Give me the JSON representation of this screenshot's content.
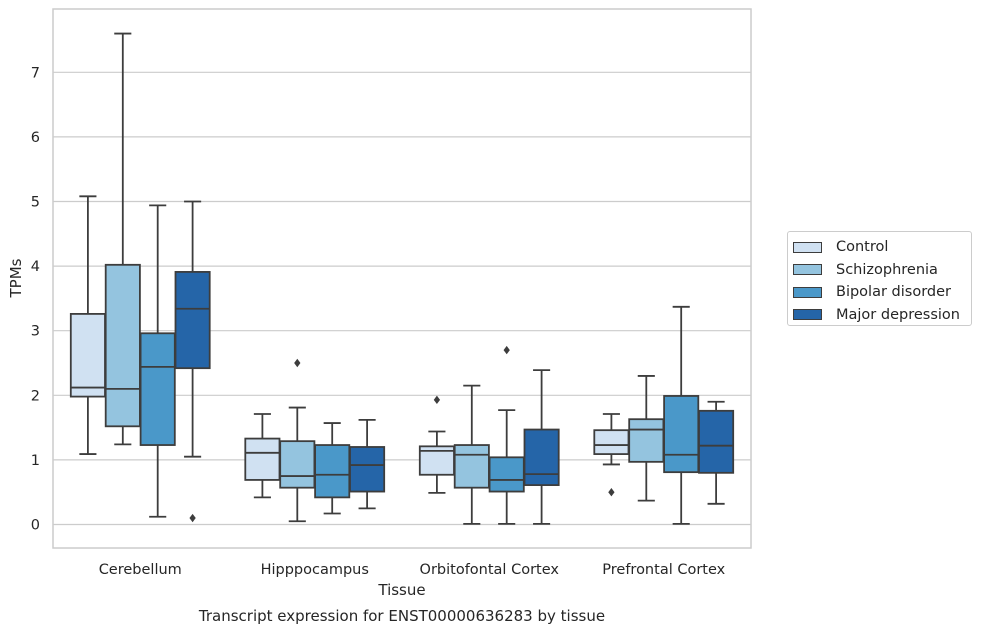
{
  "chart_data": {
    "type": "box",
    "title": "Transcript expression for ENST00000636283 by tissue",
    "xlabel": "Tissue",
    "ylabel": "TPMs",
    "ylim": [
      -0.35,
      8.0
    ],
    "yticks": [
      0,
      1,
      2,
      3,
      4,
      5,
      6,
      7
    ],
    "grid": "horizontal",
    "legend_position": "right",
    "categories": [
      "Cerebellum",
      "Hipppocampus",
      "Orbitofontal Cortex",
      "Prefrontal Cortex"
    ],
    "series": [
      {
        "name": "Control",
        "color": "#d0e1f2",
        "boxes": [
          {
            "min": 1.09,
            "q1": 1.98,
            "median": 2.12,
            "q3": 3.26,
            "max": 5.08,
            "outliers": []
          },
          {
            "min": 0.42,
            "q1": 0.69,
            "median": 1.11,
            "q3": 1.33,
            "max": 1.71,
            "outliers": []
          },
          {
            "min": 0.49,
            "q1": 0.77,
            "median": 1.14,
            "q3": 1.21,
            "max": 1.44,
            "outliers": [
              1.93
            ]
          },
          {
            "min": 0.93,
            "q1": 1.09,
            "median": 1.23,
            "q3": 1.46,
            "max": 1.71,
            "outliers": [
              0.5
            ]
          }
        ]
      },
      {
        "name": "Schizophrenia",
        "color": "#94c4df",
        "boxes": [
          {
            "min": 1.24,
            "q1": 1.52,
            "median": 2.1,
            "q3": 4.02,
            "max": 7.6,
            "outliers": []
          },
          {
            "min": 0.05,
            "q1": 0.57,
            "median": 0.75,
            "q3": 1.29,
            "max": 1.81,
            "outliers": [
              2.5
            ]
          },
          {
            "min": 0.01,
            "q1": 0.57,
            "median": 1.08,
            "q3": 1.23,
            "max": 2.15,
            "outliers": []
          },
          {
            "min": 0.37,
            "q1": 0.97,
            "median": 1.47,
            "q3": 1.63,
            "max": 2.3,
            "outliers": []
          }
        ]
      },
      {
        "name": "Bipolar disorder",
        "color": "#4a98c9",
        "boxes": [
          {
            "min": 0.12,
            "q1": 1.23,
            "median": 2.44,
            "q3": 2.96,
            "max": 4.94,
            "outliers": []
          },
          {
            "min": 0.17,
            "q1": 0.42,
            "median": 0.77,
            "q3": 1.23,
            "max": 1.57,
            "outliers": []
          },
          {
            "min": 0.01,
            "q1": 0.51,
            "median": 0.69,
            "q3": 1.04,
            "max": 1.77,
            "outliers": [
              2.7
            ]
          },
          {
            "min": 0.01,
            "q1": 0.81,
            "median": 1.08,
            "q3": 1.99,
            "max": 3.37,
            "outliers": []
          }
        ]
      },
      {
        "name": "Major depression",
        "color": "#2565a8",
        "boxes": [
          {
            "min": 1.05,
            "q1": 2.42,
            "median": 3.34,
            "q3": 3.91,
            "max": 5.0,
            "outliers": [
              0.1
            ]
          },
          {
            "min": 0.25,
            "q1": 0.51,
            "median": 0.92,
            "q3": 1.2,
            "max": 1.62,
            "outliers": []
          },
          {
            "min": 0.01,
            "q1": 0.61,
            "median": 0.78,
            "q3": 1.47,
            "max": 2.39,
            "outliers": []
          },
          {
            "min": 0.32,
            "q1": 0.8,
            "median": 1.22,
            "q3": 1.76,
            "max": 1.9,
            "outliers": []
          }
        ]
      }
    ]
  }
}
